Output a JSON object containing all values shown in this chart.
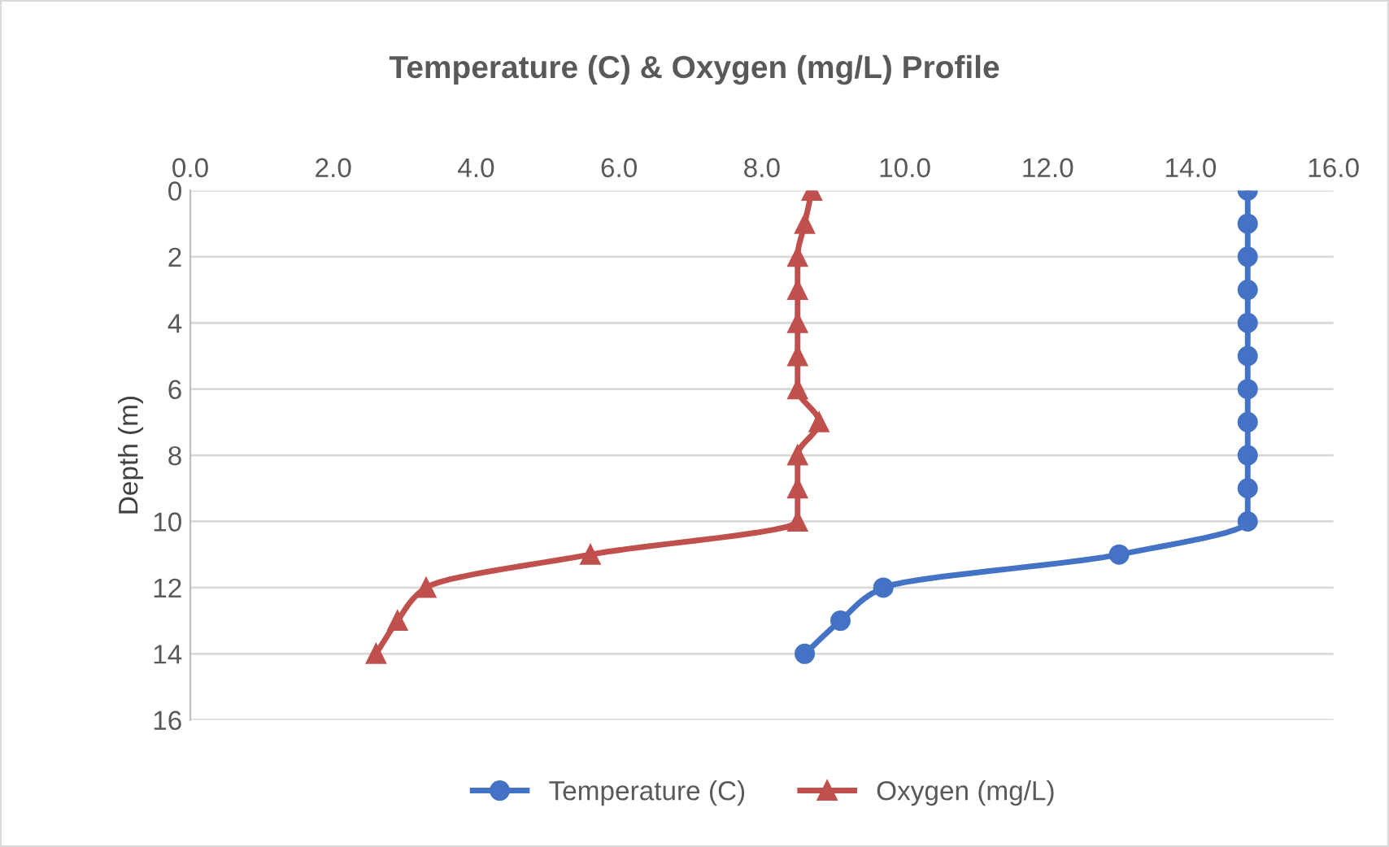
{
  "chart_data": {
    "type": "line",
    "title": "Temperature (C) & Oxygen (mg/L) Profile",
    "ylabel": "Depth (m)",
    "xlim": [
      0,
      16
    ],
    "xticks": [
      {
        "value": 0,
        "label": "0.0"
      },
      {
        "value": 2,
        "label": "2.0"
      },
      {
        "value": 4,
        "label": "4.0"
      },
      {
        "value": 6,
        "label": "6.0"
      },
      {
        "value": 8,
        "label": "8.0"
      },
      {
        "value": 10,
        "label": "10.0"
      },
      {
        "value": 12,
        "label": "12.0"
      },
      {
        "value": 14,
        "label": "14.0"
      },
      {
        "value": 16,
        "label": "16.0"
      }
    ],
    "ylim": [
      16,
      0
    ],
    "yticks": [
      0,
      2,
      4,
      6,
      8,
      10,
      12,
      14,
      16
    ],
    "grid": "y",
    "legend": "bottom",
    "series": [
      {
        "name": "Temperature (C)",
        "color": "#4472c4",
        "marker": "circle",
        "x": [
          14.8,
          14.8,
          14.8,
          14.8,
          14.8,
          14.8,
          14.8,
          14.8,
          14.8,
          14.8,
          14.8,
          13.0,
          9.7,
          9.1,
          8.6
        ],
        "values": [
          0,
          1,
          2,
          3,
          4,
          5,
          6,
          7,
          8,
          9,
          10,
          11,
          12,
          13,
          14
        ]
      },
      {
        "name": "Oxygen (mg/L)",
        "color": "#c0504d",
        "marker": "triangle",
        "x": [
          8.7,
          8.6,
          8.5,
          8.5,
          8.5,
          8.5,
          8.5,
          8.8,
          8.5,
          8.5,
          8.5,
          5.6,
          3.3,
          2.9,
          2.6
        ],
        "values": [
          0,
          1,
          2,
          3,
          4,
          5,
          6,
          7,
          8,
          9,
          10,
          11,
          12,
          13,
          14
        ]
      }
    ]
  }
}
